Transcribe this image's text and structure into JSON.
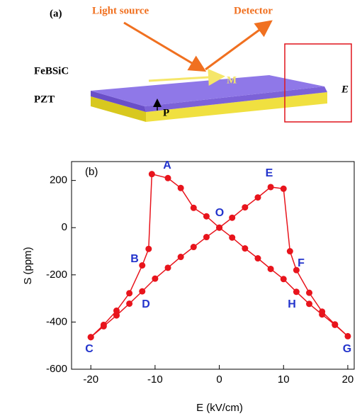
{
  "diagram": {
    "panel_label": "(a)",
    "light_source": "Light source",
    "detector": "Detector",
    "film": "FeBSiC",
    "substrate": "PZT",
    "magnetization": "M",
    "polarization": "P",
    "field": "E"
  },
  "chart_data": {
    "type": "line",
    "panel_label": "(b)",
    "xlabel": "E (kV/cm)",
    "ylabel": "S (ppm)",
    "x": [
      -20,
      -18,
      -16,
      -14,
      -12,
      -11,
      -10.5,
      -8,
      -6,
      -4,
      -2,
      0,
      2,
      4,
      6,
      8,
      10,
      12,
      14,
      16,
      18,
      20,
      18,
      16,
      14,
      12,
      11,
      10,
      8,
      6,
      4,
      2,
      0,
      -2,
      -4,
      -6,
      -8,
      -10,
      -12,
      -14,
      -16,
      -18,
      -20
    ],
    "values": [
      -464,
      -412,
      -352,
      -278,
      -160,
      -90,
      227,
      210,
      168,
      84,
      48,
      0,
      -42,
      -88,
      -130,
      -175,
      -218,
      -272,
      -323,
      -368,
      -412,
      -460,
      -410,
      -356,
      -276,
      -180,
      -100,
      165,
      172,
      128,
      86,
      42,
      0,
      -40,
      -82,
      -124,
      -170,
      -216,
      -270,
      -322,
      -372,
      -418,
      -464
    ],
    "color": "#e8141c",
    "xlim": [
      -23,
      21
    ],
    "ylim": [
      -600,
      280
    ],
    "xticks": [
      -20,
      -10,
      0,
      10,
      20
    ],
    "yticks": [
      -600,
      -400,
      -200,
      0,
      200
    ],
    "annotations": [
      "A",
      "B",
      "C",
      "D",
      "E",
      "F",
      "G",
      "H",
      "O"
    ]
  }
}
